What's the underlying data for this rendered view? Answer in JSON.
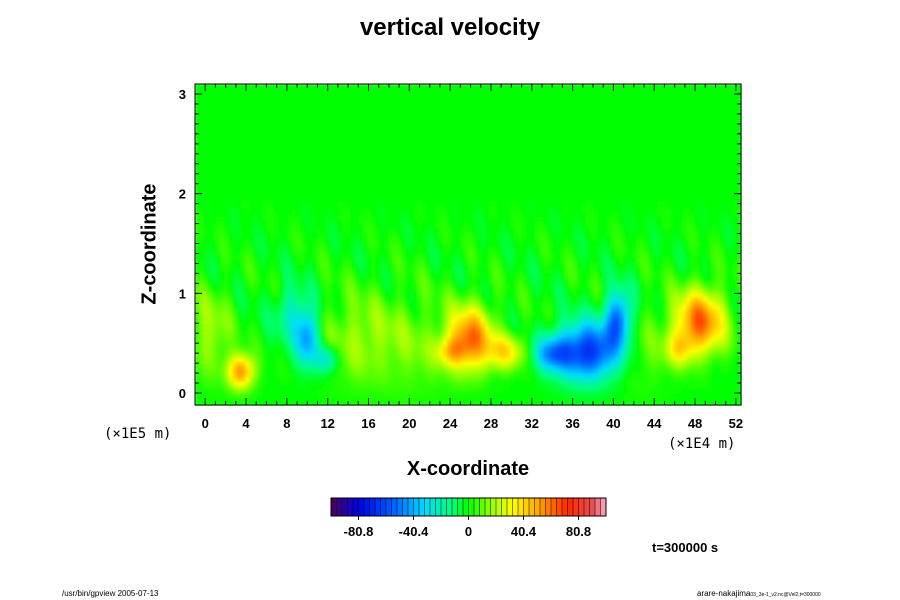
{
  "chart_data": {
    "type": "heatmap",
    "title": "vertical velocity",
    "xlabel": "X-coordinate",
    "ylabel": "Z-coordinate",
    "x_unit_label": "(×1E4 m)",
    "z_unit_label": "(×1E5 m)",
    "xlim": [
      -1,
      52.5
    ],
    "ylim": [
      -0.12,
      3.1
    ],
    "x_ticks": [
      0,
      4,
      8,
      12,
      16,
      20,
      24,
      28,
      32,
      36,
      40,
      44,
      48,
      52
    ],
    "y_ticks": [
      0,
      1,
      2,
      3
    ],
    "colorbar": {
      "min": -101,
      "max": 101,
      "ticks": [
        -80.8,
        -40.4,
        0,
        40.4,
        80.8
      ],
      "tick_labels": [
        "-80.8",
        "-40.4",
        "0",
        "40.4",
        "80.8"
      ]
    },
    "features": [
      {
        "x": 26.0,
        "z": 0.55,
        "w": 60,
        "sx": 1.5,
        "sz": 0.22
      },
      {
        "x": 29.5,
        "z": 0.42,
        "w": 35,
        "sx": 1.3,
        "sz": 0.12
      },
      {
        "x": 24.0,
        "z": 0.42,
        "w": 28,
        "sx": 1.0,
        "sz": 0.1
      },
      {
        "x": 48.5,
        "z": 0.72,
        "w": 62,
        "sx": 1.7,
        "sz": 0.22
      },
      {
        "x": 46.5,
        "z": 0.45,
        "w": 28,
        "sx": 1.0,
        "sz": 0.12
      },
      {
        "x": 3.5,
        "z": 0.22,
        "w": 55,
        "sx": 0.9,
        "sz": 0.12
      },
      {
        "x": 0.5,
        "z": 0.6,
        "w": 18,
        "sx": 1.4,
        "sz": 0.3
      },
      {
        "x": 37.5,
        "z": 0.42,
        "w": -68,
        "sx": 2.2,
        "sz": 0.2
      },
      {
        "x": 40.5,
        "z": 0.75,
        "w": -55,
        "sx": 0.9,
        "sz": 0.2
      },
      {
        "x": 34.0,
        "z": 0.4,
        "w": -38,
        "sx": 1.2,
        "sz": 0.12
      },
      {
        "x": 10.0,
        "z": 0.55,
        "w": -45,
        "sx": 0.8,
        "sz": 0.2
      },
      {
        "x": 12.0,
        "z": 0.35,
        "w": -30,
        "sx": 0.8,
        "sz": 0.1
      },
      {
        "x": 8.5,
        "z": 0.8,
        "w": -22,
        "sx": 1.2,
        "sz": 0.2
      },
      {
        "x": 14.5,
        "z": 0.55,
        "w": 15,
        "sx": 2.5,
        "sz": 0.3
      },
      {
        "x": 20.0,
        "z": 0.5,
        "w": 12,
        "sx": 3.0,
        "sz": 0.35
      },
      {
        "x": 42.5,
        "z": 0.45,
        "w": 10,
        "sx": 2.0,
        "sz": 0.3
      }
    ],
    "time_label": "t=300000 s"
  },
  "footer": {
    "left": "/usr/bin/gpview 2005-07-13",
    "right_main": "arare-nakajima",
    "right_sub": "03_3e-1_v2.nc@Vel2,t=300000"
  },
  "colors": {
    "plot_frame": "#000000",
    "background": "#ffffff"
  }
}
